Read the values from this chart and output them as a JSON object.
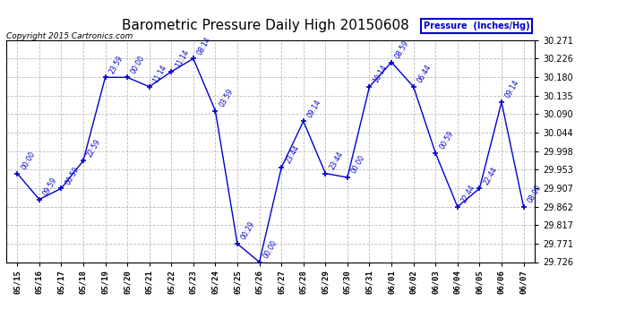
{
  "title": "Barometric Pressure Daily High 20150608",
  "copyright": "Copyright 2015 Cartronics.com",
  "legend_label": "Pressure  (Inches/Hg)",
  "x_labels": [
    "05/15",
    "05/16",
    "05/17",
    "05/18",
    "05/19",
    "05/20",
    "05/21",
    "05/22",
    "05/23",
    "05/24",
    "05/25",
    "05/26",
    "05/27",
    "05/28",
    "05/29",
    "05/30",
    "05/31",
    "06/01",
    "06/02",
    "06/03",
    "06/04",
    "06/05",
    "06/06",
    "06/07"
  ],
  "y_values": [
    29.944,
    29.88,
    29.907,
    29.975,
    30.18,
    30.18,
    30.157,
    30.194,
    30.226,
    30.098,
    29.771,
    29.726,
    29.958,
    30.072,
    29.944,
    29.934,
    30.157,
    30.217,
    30.157,
    29.994,
    29.862,
    29.907,
    30.119,
    29.862
  ],
  "point_labels": [
    "00:00",
    "09:59",
    "00:59",
    "22:59",
    "23:59",
    "00:00",
    "11:14",
    "11:14",
    "08:14",
    "03:59",
    "00:29",
    "00:00",
    "23:44",
    "09:14",
    "23:44",
    "00:00",
    "10:14",
    "08:59",
    "06:44",
    "00:59",
    "22:44",
    "22:44",
    "09:14",
    "08:00"
  ],
  "ylim_min": 29.726,
  "ylim_max": 30.271,
  "y_ticks": [
    29.726,
    29.771,
    29.817,
    29.862,
    29.907,
    29.953,
    29.998,
    30.044,
    30.09,
    30.135,
    30.18,
    30.226,
    30.271
  ],
  "line_color": "#0000cc",
  "marker_color": "#0000cc",
  "bg_color": "#ffffff",
  "grid_color": "#bbbbbb",
  "title_color": "#000000",
  "text_color": "#0000cc",
  "figwidth": 6.9,
  "figheight": 3.75,
  "dpi": 100
}
